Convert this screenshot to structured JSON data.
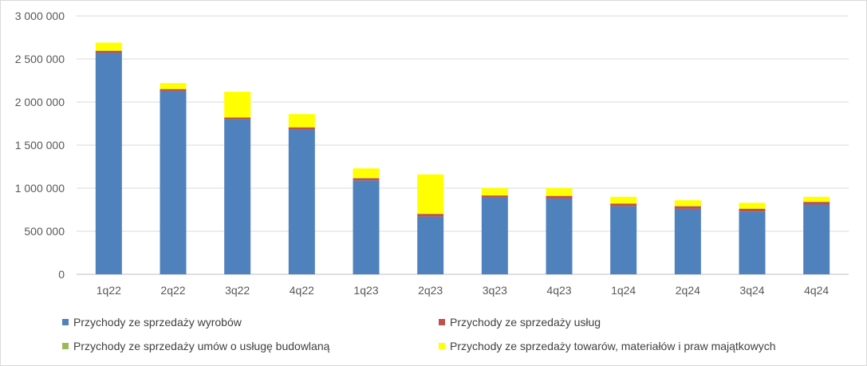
{
  "chart_data": {
    "type": "bar",
    "stacked": true,
    "categories": [
      "1q22",
      "2q22",
      "3q22",
      "4q22",
      "1q23",
      "2q23",
      "3q23",
      "4q23",
      "1q24",
      "2q24",
      "3q24",
      "4q24"
    ],
    "ylim": [
      0,
      3000000
    ],
    "yticks": [
      0,
      500000,
      1000000,
      1500000,
      2000000,
      2500000,
      3000000
    ],
    "ytick_labels": [
      "0",
      "500 000",
      "1 000 000",
      "1 500 000",
      "2 000 000",
      "2 500 000",
      "3 000 000"
    ],
    "grid": true,
    "legend_position": "bottom",
    "series": [
      {
        "name": "Przychody ze sprzedaży wyrobów",
        "color": "#4f81bd",
        "values": [
          2570000,
          2130000,
          1800000,
          1680000,
          1090000,
          670000,
          890000,
          880000,
          790000,
          760000,
          730000,
          810000
        ]
      },
      {
        "name": "Przychody ze sprzedaży usług",
        "color": "#c0504d",
        "values": [
          25000,
          20000,
          20000,
          25000,
          25000,
          30000,
          25000,
          30000,
          30000,
          30000,
          30000,
          30000
        ]
      },
      {
        "name": "Przychody ze sprzedaży umów o usługę budowlaną",
        "color": "#9bbb59",
        "values": [
          3000,
          3000,
          3000,
          3000,
          3000,
          3000,
          3000,
          3000,
          3000,
          3000,
          3000,
          3000
        ]
      },
      {
        "name": "Przychody ze sprzedaży towarów, materiałów i praw majątkowych",
        "color": "#ffff00",
        "values": [
          92000,
          67000,
          297000,
          152000,
          112000,
          457000,
          82000,
          87000,
          77000,
          67000,
          67000,
          57000
        ]
      }
    ]
  }
}
